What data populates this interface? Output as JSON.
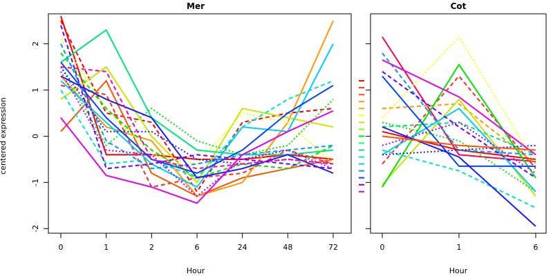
{
  "palette": [
    "#ff0000",
    "#ff2b2b",
    "#ff5500",
    "#ff9900",
    "#e6b400",
    "#ffff00",
    "#c8e600",
    "#7fff00",
    "#00e600",
    "#00ff7f",
    "#00e6c8",
    "#00ccff",
    "#0099ff",
    "#0044ff",
    "#1a1aff",
    "#6600ff",
    "#aa00ff",
    "#e600e6",
    "#ff00aa",
    "#ff0055"
  ],
  "ylabel": "centered expression",
  "y_ticks": [
    "-2",
    "-1",
    "0",
    "1",
    "2"
  ],
  "chart_data": [
    {
      "type": "line",
      "title": "Mer",
      "xlabel": "Hour",
      "categories": [
        "0",
        "1",
        "2",
        "6",
        "24",
        "48",
        "72"
      ],
      "ylim": [
        -2.1,
        2.65
      ],
      "series": [
        {
          "values": [
            2.6,
            -0.4,
            -0.4,
            -0.5,
            -0.5,
            -0.4,
            -0.5
          ],
          "color": "#ff0000",
          "dash": "solid"
        },
        {
          "values": [
            2.5,
            0.5,
            0.3,
            -1.2,
            0.3,
            0.5,
            0.6
          ],
          "color": "#ff0000",
          "dash": "dash"
        },
        {
          "values": [
            1.1,
            0.9,
            -1.1,
            -0.9,
            -0.8,
            -0.3,
            -0.6
          ],
          "color": "#ff2b2b",
          "dash": "dash"
        },
        {
          "values": [
            0.1,
            1.2,
            -0.8,
            -1.3,
            -0.9,
            -0.7,
            -0.5
          ],
          "color": "#ff5500",
          "dash": "solid"
        },
        {
          "values": [
            1.3,
            0.2,
            -0.1,
            -1.3,
            -1.0,
            0.3,
            2.5
          ],
          "color": "#ff9900",
          "dash": "solid"
        },
        {
          "values": [
            0.8,
            1.5,
            0.0,
            -1.0,
            0.6,
            0.4,
            0.2
          ],
          "color": "#c8e600",
          "dash": "solid"
        },
        {
          "values": [
            2.1,
            0.6,
            -0.4,
            -0.6,
            0.5,
            0.3,
            -0.6
          ],
          "color": "#ffff00",
          "dash": "dot"
        },
        {
          "values": [
            1.6,
            2.3,
            0.4,
            -0.3,
            -0.4,
            -0.4,
            -0.3
          ],
          "color": "#00e67f",
          "dash": "solid"
        },
        {
          "values": [
            1.5,
            -0.2,
            0.6,
            -0.1,
            -0.4,
            -0.2,
            0.8
          ],
          "color": "#00e600",
          "dash": "dot"
        },
        {
          "values": [
            1.8,
            0.6,
            -0.3,
            -0.9,
            -0.6,
            -0.7,
            -0.2
          ],
          "color": "#00e600",
          "dash": "dash"
        },
        {
          "values": [
            1.2,
            0.3,
            -0.6,
            -1.1,
            0.2,
            0.1,
            2.0
          ],
          "color": "#00ccff",
          "dash": "solid"
        },
        {
          "values": [
            1.0,
            -0.6,
            -0.5,
            -0.9,
            0.2,
            0.8,
            1.2
          ],
          "color": "#00e6c8",
          "dash": "dash"
        },
        {
          "values": [
            1.6,
            0.4,
            -0.5,
            -0.8,
            -0.3,
            0.5,
            1.1
          ],
          "color": "#0044ff",
          "dash": "solid"
        },
        {
          "values": [
            2.0,
            -0.1,
            -0.7,
            -0.6,
            -0.4,
            -0.3,
            -0.2
          ],
          "color": "#0099ff",
          "dash": "dash"
        },
        {
          "values": [
            1.3,
            0.8,
            0.4,
            -0.9,
            -0.7,
            -0.4,
            -0.8
          ],
          "color": "#1a1aff",
          "dash": "solid"
        },
        {
          "values": [
            1.5,
            0.1,
            0.1,
            -0.5,
            -0.6,
            -0.5,
            -0.6
          ],
          "color": "#1a1aff",
          "dash": "dot"
        },
        {
          "values": [
            2.4,
            -0.7,
            -0.6,
            -0.4,
            -0.5,
            -0.6,
            -0.7
          ],
          "color": "#6600ff",
          "dash": "dash"
        },
        {
          "values": [
            0.4,
            -0.85,
            -1.1,
            -1.45,
            -0.4,
            0.1,
            0.55
          ],
          "color": "#e600e6",
          "dash": "solid"
        },
        {
          "values": [
            1.4,
            -0.3,
            -0.4,
            -1.3,
            -0.5,
            -0.3,
            -0.7
          ],
          "color": "#aa00ff",
          "dash": "dot"
        },
        {
          "values": [
            1.5,
            1.4,
            -0.5,
            -0.7,
            -0.6,
            -0.5,
            -0.6
          ],
          "color": "#ff00aa",
          "dash": "dash"
        }
      ]
    },
    {
      "type": "line",
      "title": "Cot",
      "xlabel": "Hour",
      "categories": [
        "0",
        "1",
        "6"
      ],
      "ylim": [
        -2.1,
        2.65
      ],
      "series": [
        {
          "values": [
            2.15,
            -0.4,
            -0.55
          ],
          "color": "#ff0055",
          "dash": "solid"
        },
        {
          "values": [
            -0.6,
            1.3,
            -0.7
          ],
          "color": "#ff2b2b",
          "dash": "dash"
        },
        {
          "values": [
            0.1,
            -0.3,
            -0.5
          ],
          "color": "#ff0000",
          "dash": "solid"
        },
        {
          "values": [
            0.6,
            0.7,
            -0.6
          ],
          "color": "#ff9900",
          "dash": "dash"
        },
        {
          "values": [
            0.4,
            2.15,
            -0.6
          ],
          "color": "#ffff00",
          "dash": "dot"
        },
        {
          "values": [
            -1.05,
            0.8,
            -1.3
          ],
          "color": "#c8e600",
          "dash": "solid"
        },
        {
          "values": [
            -1.1,
            1.55,
            -0.9
          ],
          "color": "#00e600",
          "dash": "solid"
        },
        {
          "values": [
            0.3,
            -0.1,
            -1.2
          ],
          "color": "#00e600",
          "dash": "dot"
        },
        {
          "values": [
            0.2,
            0.3,
            -0.4
          ],
          "color": "#00e67f",
          "dash": "dash"
        },
        {
          "values": [
            -0.4,
            0.6,
            -1.2
          ],
          "color": "#00ccff",
          "dash": "solid"
        },
        {
          "values": [
            -0.3,
            -0.75,
            -1.55
          ],
          "color": "#00e6c8",
          "dash": "dash"
        },
        {
          "values": [
            1.3,
            -0.65,
            -0.65
          ],
          "color": "#0044ff",
          "dash": "solid"
        },
        {
          "values": [
            1.8,
            -0.3,
            -0.4
          ],
          "color": "#0099ff",
          "dash": "dash"
        },
        {
          "values": [
            0.2,
            -0.45,
            -1.95
          ],
          "color": "#1a1aff",
          "dash": "solid"
        },
        {
          "values": [
            -0.4,
            -0.3,
            -0.2
          ],
          "color": "#1a1aff",
          "dash": "dot"
        },
        {
          "values": [
            1.4,
            0.2,
            -0.9
          ],
          "color": "#6600ff",
          "dash": "dash"
        },
        {
          "values": [
            1.65,
            0.85,
            -0.4
          ],
          "color": "#e600e6",
          "dash": "solid"
        },
        {
          "values": [
            -0.2,
            0.3,
            -0.8
          ],
          "color": "#aa00ff",
          "dash": "dot"
        },
        {
          "values": [
            0.0,
            -0.2,
            -0.3
          ],
          "color": "#ff5500",
          "dash": "solid"
        }
      ]
    }
  ],
  "ticks_rug": {
    "values": [
      1.2,
      1.05,
      0.9,
      0.75,
      0.6,
      0.45,
      0.3,
      0.15,
      0.0,
      -0.15,
      -0.3,
      -0.45,
      -0.6,
      -0.75,
      -0.9,
      -1.05,
      -1.2
    ],
    "colors": [
      "#ff0000",
      "#ff2b2b",
      "#ff5500",
      "#ff9900",
      "#e6b400",
      "#ffff00",
      "#c8e600",
      "#7fff00",
      "#00e600",
      "#00ff7f",
      "#00e67f",
      "#00e6c8",
      "#00ccff",
      "#0099ff",
      "#0044ff",
      "#6600ff",
      "#e600e6"
    ]
  }
}
